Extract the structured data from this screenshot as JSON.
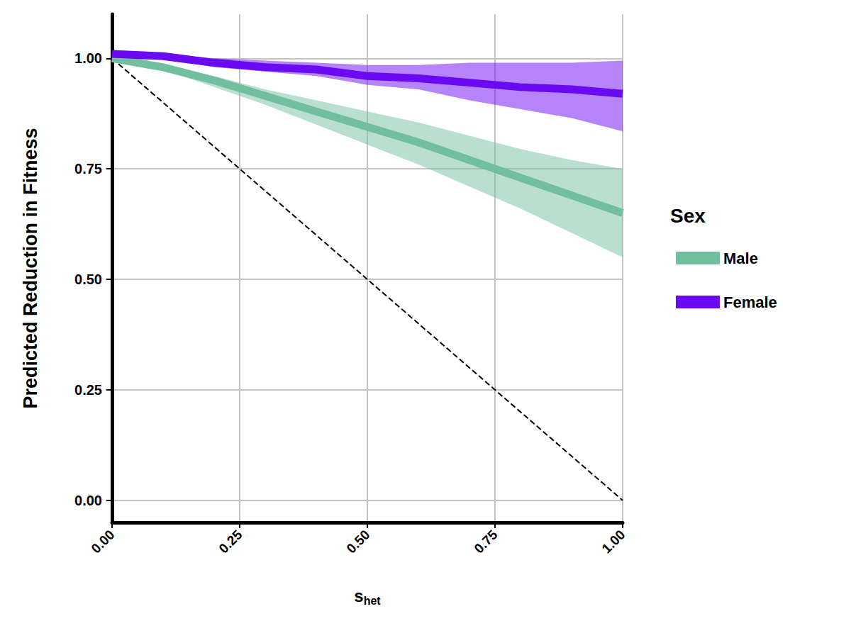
{
  "chart_data": {
    "type": "line",
    "ylabel": "Predicted Reduction in Fitness",
    "xlabel": {
      "text": "s",
      "subscript": "het"
    },
    "legend_title": "Sex",
    "legend": "right",
    "grid": true,
    "xlim": [
      0,
      1
    ],
    "ylim": [
      -0.05,
      1.1
    ],
    "xticks": [
      {
        "value": 0,
        "label": "0.00"
      },
      {
        "value": 0.25,
        "label": "0.25"
      },
      {
        "value": 0.5,
        "label": "0.50"
      },
      {
        "value": 0.75,
        "label": "0.75"
      },
      {
        "value": 1,
        "label": "1.00"
      }
    ],
    "yticks": [
      {
        "value": 0,
        "label": "0.00"
      },
      {
        "value": 0.25,
        "label": "0.25"
      },
      {
        "value": 0.5,
        "label": "0.50"
      },
      {
        "value": 0.75,
        "label": "0.75"
      },
      {
        "value": 1,
        "label": "1.00"
      }
    ],
    "x": [
      0,
      0.1,
      0.2,
      0.3,
      0.4,
      0.5,
      0.6,
      0.7,
      0.8,
      0.9,
      1.0
    ],
    "series": [
      {
        "name": "Male",
        "color": "#72bf9f",
        "values": [
          1.0,
          0.98,
          0.95,
          0.915,
          0.88,
          0.845,
          0.81,
          0.77,
          0.73,
          0.69,
          0.65
        ],
        "lower": [
          1.0,
          0.975,
          0.935,
          0.895,
          0.85,
          0.805,
          0.76,
          0.71,
          0.66,
          0.605,
          0.55
        ],
        "upper": [
          1.0,
          0.985,
          0.96,
          0.93,
          0.905,
          0.88,
          0.855,
          0.825,
          0.795,
          0.77,
          0.75
        ]
      },
      {
        "name": "Female",
        "color": "#6a0af2",
        "values": [
          1.01,
          1.005,
          0.99,
          0.98,
          0.975,
          0.96,
          0.955,
          0.945,
          0.935,
          0.93,
          0.92
        ],
        "lower": [
          1.01,
          1.0,
          0.98,
          0.97,
          0.96,
          0.94,
          0.93,
          0.905,
          0.885,
          0.865,
          0.835
        ],
        "upper": [
          1.01,
          1.01,
          1.0,
          0.995,
          0.99,
          0.985,
          0.985,
          0.99,
          0.99,
          0.99,
          0.995
        ]
      }
    ],
    "reference_line": {
      "x": [
        0,
        1
      ],
      "values": [
        1,
        0
      ],
      "color": "#000000",
      "line_style": "dashed"
    }
  }
}
